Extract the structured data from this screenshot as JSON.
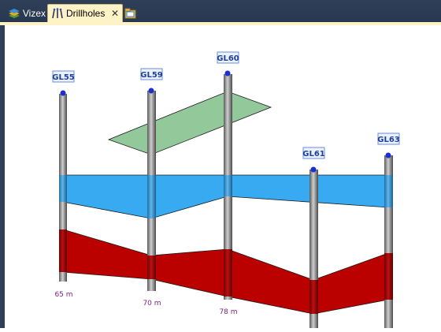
{
  "tabs": [
    {
      "label": "Vizex",
      "icon": "layers-icon",
      "active": false
    },
    {
      "label": "Drillholes",
      "icon": "drillholes-icon",
      "active": true
    }
  ],
  "close_glyph": "✕",
  "new_tab_icon": "open-folder-icon",
  "colors": {
    "tabbar": "#2e3f57",
    "active_tab": "#fdf3c6",
    "green_layer": "#93c89a",
    "blue_layer": "#38aaf2",
    "red_layer": "#bb0000",
    "label_box": "#eaf2ff",
    "label_text": "#1f3f9f",
    "depth_text": "#7a1e7a"
  },
  "holes": [
    {
      "id": "GL55",
      "depth": "65 m"
    },
    {
      "id": "GL59",
      "depth": "70 m"
    },
    {
      "id": "GL60",
      "depth": "78 m"
    },
    {
      "id": "GL61",
      "depth": ""
    },
    {
      "id": "GL63",
      "depth": ""
    }
  ]
}
